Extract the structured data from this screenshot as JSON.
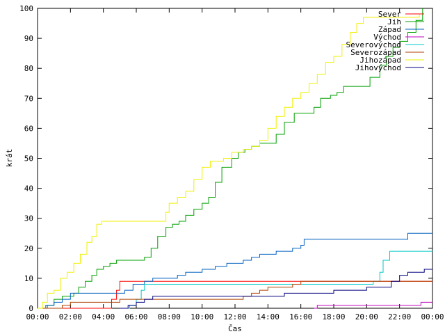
{
  "chart_data": {
    "type": "line",
    "title": "",
    "xlabel": "Čas",
    "ylabel": "krát",
    "xlim": [
      0,
      24
    ],
    "ylim": [
      0,
      100
    ],
    "x_ticks": [
      "00:00",
      "02:00",
      "04:00",
      "06:00",
      "08:00",
      "10:00",
      "12:00",
      "14:00",
      "16:00",
      "18:00",
      "20:00",
      "22:00",
      "00:00"
    ],
    "y_ticks": [
      "0",
      "10",
      "20",
      "30",
      "40",
      "50",
      "60",
      "70",
      "80",
      "90",
      "100"
    ],
    "grid": false,
    "legend_position": "top-right",
    "series": [
      {
        "name": "Sever",
        "color": "#ff0000",
        "x": [
          0,
          4.2,
          4.5,
          4.8,
          5.0,
          24
        ],
        "y": [
          0,
          0,
          3,
          6,
          9,
          9
        ]
      },
      {
        "name": "Jih",
        "color": "#00a000",
        "x": [
          0.1,
          0.6,
          1.0,
          1.5,
          2.2,
          2.5,
          2.9,
          3.3,
          3.6,
          4.0,
          4.4,
          4.8,
          5.2,
          5.6,
          6.0,
          6.5,
          6.9,
          7.3,
          7.8,
          8.2,
          8.6,
          9.0,
          9.5,
          10.0,
          10.4,
          10.8,
          11.2,
          11.8,
          12.2,
          12.6,
          13.0,
          13.5,
          14.0,
          14.5,
          15.0,
          15.6,
          16.2,
          16.8,
          17.2,
          17.8,
          18.2,
          18.6,
          19.0,
          19.6,
          20.2,
          20.8,
          21.2,
          21.6,
          22.0,
          22.5,
          23.0,
          23.4
        ],
        "y": [
          0,
          1,
          3,
          4,
          5,
          7,
          9,
          11,
          13,
          14,
          15,
          16,
          16,
          16,
          16,
          17,
          20,
          24,
          27,
          28,
          29,
          31,
          33,
          35,
          37,
          42,
          47,
          50,
          52,
          53,
          54,
          55,
          55,
          58,
          62,
          65,
          65,
          67,
          70,
          71,
          72,
          74,
          74,
          74,
          77,
          81,
          84,
          87,
          89,
          92,
          96,
          100
        ]
      },
      {
        "name": "Západ",
        "color": "#0060c0",
        "x": [
          0,
          0.5,
          1.0,
          1.5,
          2.0,
          4.0,
          5.3,
          5.8,
          6.5,
          7.0,
          7.6,
          8.5,
          9.0,
          9.5,
          10.0,
          10.8,
          11.5,
          12.0,
          12.5,
          13.0,
          13.5,
          14.0,
          14.5,
          15.5,
          16.0,
          16.2,
          17.0,
          21.5,
          22.5,
          24
        ],
        "y": [
          0,
          1,
          2,
          3,
          5,
          5,
          6,
          8,
          9,
          10,
          10,
          11,
          12,
          12,
          13,
          14,
          15,
          15,
          16,
          17,
          18,
          18,
          19,
          20,
          21,
          23,
          23,
          23,
          25,
          25
        ]
      },
      {
        "name": "Východ",
        "color": "#c000c0",
        "x": [
          16.8,
          17.0,
          23.0,
          23.3,
          24
        ],
        "y": [
          0,
          1,
          1,
          2,
          2
        ]
      },
      {
        "name": "Severovýchod",
        "color": "#00c8c8",
        "x": [
          5.0,
          5.6,
          6.0,
          6.3,
          6.5,
          20.0,
          20.4,
          20.8,
          21.0,
          21.4,
          24
        ],
        "y": [
          0,
          1,
          3,
          6,
          8,
          8,
          9,
          12,
          16,
          19,
          19
        ]
      },
      {
        "name": "Severozápad",
        "color": "#b04000",
        "x": [
          0,
          1.5,
          2.0,
          4.0,
          5.0,
          12.0,
          12.5,
          13.0,
          13.5,
          14.0,
          15.5,
          16.0,
          18.0,
          20.0,
          21.0,
          24
        ],
        "y": [
          0,
          1,
          2,
          2,
          3,
          3,
          4,
          5,
          6,
          7,
          8,
          9,
          9,
          9,
          9,
          9
        ]
      },
      {
        "name": "Jihozápad",
        "color": "#f0f000",
        "x": [
          0,
          0.3,
          0.6,
          1.0,
          1.4,
          1.8,
          2.2,
          2.6,
          3.0,
          3.3,
          3.6,
          3.9,
          4.2,
          4.5,
          7.6,
          7.8,
          8.0,
          8.5,
          9.0,
          9.5,
          10.0,
          10.5,
          11.0,
          11.3,
          11.8,
          12.5,
          13.0,
          13.5,
          14.0,
          14.5,
          15.0,
          15.5,
          16.0,
          16.5,
          17.0,
          17.5,
          18.0,
          18.5,
          19.0,
          19.4,
          19.8,
          20.3,
          21.5,
          22.5,
          23.0,
          23.2
        ],
        "y": [
          0,
          2,
          5,
          6,
          10,
          12,
          15,
          18,
          22,
          24,
          28,
          29,
          29,
          29,
          29,
          32,
          35,
          37,
          39,
          43,
          47,
          49,
          49,
          50,
          52,
          53,
          54,
          56,
          60,
          64,
          67,
          70,
          72,
          75,
          78,
          82,
          84,
          88,
          92,
          95,
          97,
          97,
          97,
          97,
          97,
          98
        ]
      },
      {
        "name": "Jihovýchod",
        "color": "#000080",
        "x": [
          5.0,
          5.5,
          6.0,
          6.5,
          7.0,
          12.0,
          14.5,
          15.0,
          17.5,
          18.0,
          19.5,
          20.0,
          21.0,
          21.5,
          22.0,
          22.5,
          23.0,
          23.5,
          24
        ],
        "y": [
          0,
          1,
          2,
          3,
          4,
          4,
          4,
          5,
          5,
          6,
          6,
          7,
          7,
          9,
          11,
          12,
          12,
          13,
          13
        ]
      }
    ]
  }
}
